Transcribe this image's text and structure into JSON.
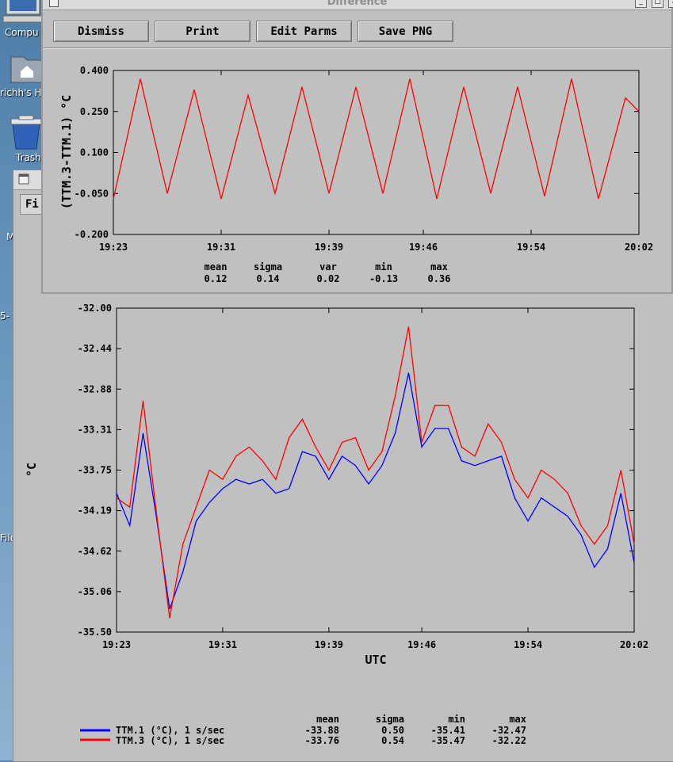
{
  "desktop": {
    "icons": [
      {
        "label": "Compu",
        "icon": "computer-icon"
      },
      {
        "label": "richh's H",
        "icon": "home-folder-icon"
      },
      {
        "label": "Trash",
        "icon": "trash-icon"
      }
    ],
    "edge_labels": [
      "M",
      "5-",
      "File"
    ]
  },
  "back_window": {
    "menu_label": "Fi"
  },
  "front_window": {
    "title": "Difference",
    "toolbar": {
      "dismiss_label": "Dismiss",
      "print_label": "Print",
      "edit_parms_label": "Edit Parms",
      "save_png_label": "Save PNG"
    }
  },
  "chart_data": [
    {
      "type": "line",
      "ylabel": "(TTM.3-TTM.1) °C",
      "ylim": [
        -0.2,
        0.4
      ],
      "y_ticks": [
        "0.400",
        "0.250",
        "0.100",
        "-0.050",
        "-0.200"
      ],
      "x_ticks": [
        "19:23",
        "19:31",
        "19:39",
        "19:46",
        "19:54",
        "20:02"
      ],
      "grid": false,
      "series": [
        {
          "color": "#ff0000",
          "x": [
            "19:23",
            "19:25",
            "19:27",
            "19:29",
            "19:31",
            "19:33",
            "19:35",
            "19:37",
            "19:39",
            "19:41",
            "19:43",
            "19:45",
            "19:47",
            "19:49",
            "19:51",
            "19:53",
            "19:55",
            "19:57",
            "19:59",
            "20:01",
            "20:02"
          ],
          "values": [
            -0.07,
            0.37,
            -0.05,
            0.33,
            -0.07,
            0.31,
            -0.05,
            0.34,
            -0.05,
            0.34,
            -0.05,
            0.37,
            -0.07,
            0.34,
            -0.05,
            0.34,
            -0.06,
            0.37,
            -0.07,
            0.3,
            0.25
          ]
        }
      ],
      "stats": {
        "headers": [
          "mean",
          "sigma",
          "var",
          "min",
          "max"
        ],
        "values": [
          "0.12",
          "0.14",
          "0.02",
          "-0.13",
          "0.36"
        ]
      }
    },
    {
      "type": "line",
      "xlabel": "UTC",
      "ylabel": "°C",
      "ylim": [
        -35.5,
        -32.0
      ],
      "y_ticks": [
        "-32.00",
        "-32.44",
        "-32.88",
        "-33.31",
        "-33.75",
        "-34.19",
        "-34.62",
        "-35.06",
        "-35.50"
      ],
      "x_ticks": [
        "19:23",
        "19:31",
        "19:39",
        "19:46",
        "19:54",
        "20:02"
      ],
      "grid": false,
      "legend_placement": "bottom-left",
      "series": [
        {
          "name": "TTM.1 (°C), 1 s/sec",
          "color": "#0000ff",
          "x": [
            "19:23",
            "19:24",
            "19:25",
            "19:26",
            "19:27",
            "19:28",
            "19:29",
            "19:30",
            "19:31",
            "19:32",
            "19:33",
            "19:34",
            "19:35",
            "19:36",
            "19:37",
            "19:38",
            "19:39",
            "19:40",
            "19:41",
            "19:42",
            "19:43",
            "19:44",
            "19:45",
            "19:46",
            "19:47",
            "19:48",
            "19:49",
            "19:50",
            "19:51",
            "19:52",
            "19:53",
            "19:54",
            "19:55",
            "19:56",
            "19:57",
            "19:58",
            "19:59",
            "20:00",
            "20:01",
            "20:02"
          ],
          "values": [
            -34.0,
            -34.35,
            -33.35,
            -34.25,
            -35.25,
            -34.85,
            -34.3,
            -34.1,
            -33.95,
            -33.85,
            -33.9,
            -33.85,
            -34.0,
            -33.95,
            -33.55,
            -33.6,
            -33.85,
            -33.6,
            -33.7,
            -33.9,
            -33.7,
            -33.35,
            -32.7,
            -33.5,
            -33.3,
            -33.3,
            -33.65,
            -33.7,
            -33.65,
            -33.6,
            -34.05,
            -34.3,
            -34.05,
            -34.15,
            -34.25,
            -34.45,
            -34.8,
            -34.6,
            -34.0,
            -34.75
          ]
        },
        {
          "name": "TTM.3 (°C), 1 s/sec",
          "color": "#ff0000",
          "x": [
            "19:23",
            "19:24",
            "19:25",
            "19:26",
            "19:27",
            "19:28",
            "19:29",
            "19:30",
            "19:31",
            "19:32",
            "19:33",
            "19:34",
            "19:35",
            "19:36",
            "19:37",
            "19:38",
            "19:39",
            "19:40",
            "19:41",
            "19:42",
            "19:43",
            "19:44",
            "19:45",
            "19:46",
            "19:47",
            "19:48",
            "19:49",
            "19:50",
            "19:51",
            "19:52",
            "19:53",
            "19:54",
            "19:55",
            "19:56",
            "19:57",
            "19:58",
            "19:59",
            "20:00",
            "20:01",
            "20:02"
          ],
          "values": [
            -34.05,
            -34.15,
            -33.0,
            -34.2,
            -35.35,
            -34.55,
            -34.15,
            -33.75,
            -33.85,
            -33.6,
            -33.5,
            -33.65,
            -33.85,
            -33.4,
            -33.2,
            -33.5,
            -33.75,
            -33.45,
            -33.4,
            -33.75,
            -33.55,
            -32.95,
            -32.2,
            -33.45,
            -33.05,
            -33.05,
            -33.5,
            -33.6,
            -33.25,
            -33.45,
            -33.85,
            -34.05,
            -33.75,
            -33.85,
            -34.0,
            -34.35,
            -34.55,
            -34.35,
            -33.75,
            -34.55
          ]
        }
      ],
      "stats": {
        "headers": [
          "mean",
          "sigma",
          "min",
          "max"
        ],
        "rows": [
          [
            "-33.88",
            "0.50",
            "-35.41",
            "-32.47"
          ],
          [
            "-33.76",
            "0.54",
            "-35.47",
            "-32.22"
          ]
        ]
      }
    }
  ]
}
